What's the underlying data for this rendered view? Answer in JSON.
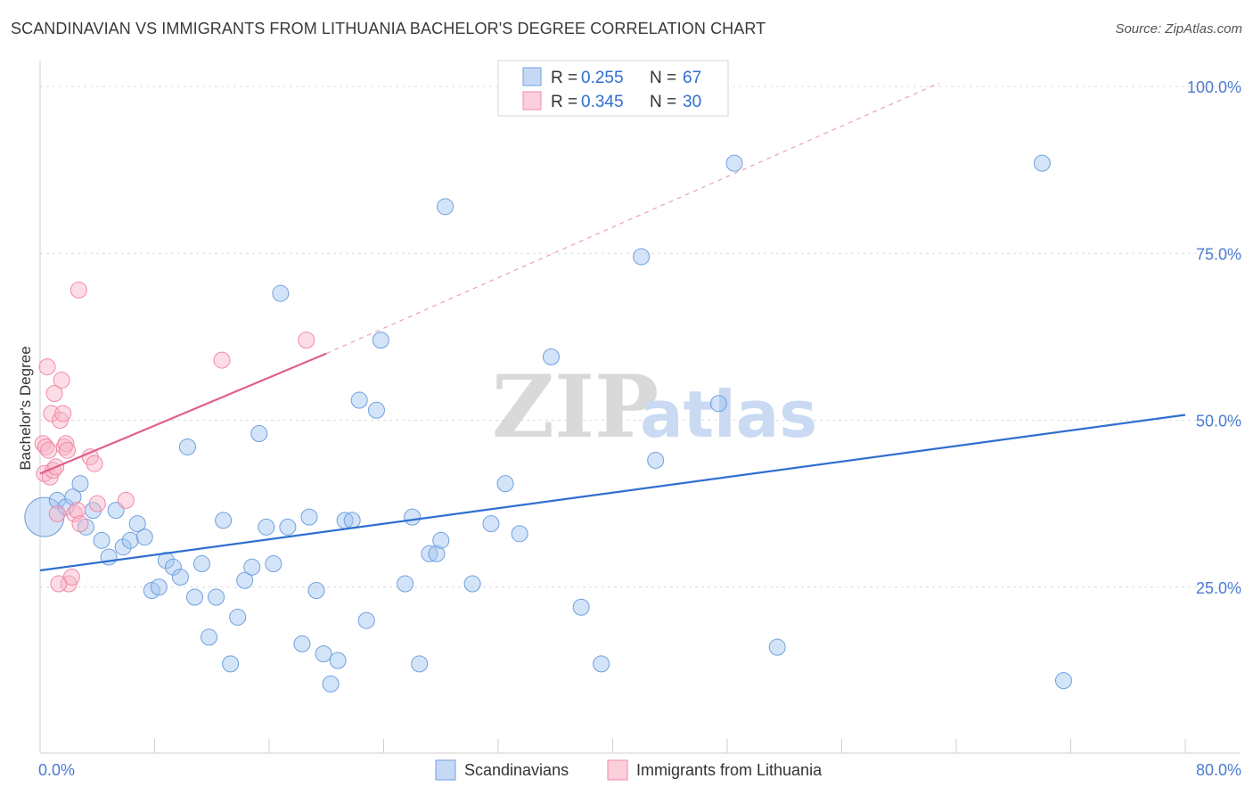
{
  "header": {
    "title": "SCANDINAVIAN VS IMMIGRANTS FROM LITHUANIA BACHELOR'S DEGREE CORRELATION CHART",
    "source": "Source: ZipAtlas.com"
  },
  "watermark": {
    "zip": "ZIP",
    "atlas": "atlas"
  },
  "legend": {
    "r_label": "R =",
    "n_label": "N =",
    "rows": [
      {
        "r": "0.255",
        "n": "67"
      },
      {
        "r": "0.345",
        "n": "30"
      }
    ]
  },
  "chart_data": {
    "type": "scatter",
    "title": "SCANDINAVIAN VS IMMIGRANTS FROM LITHUANIA BACHELOR'S DEGREE CORRELATION CHART",
    "xlabel": "",
    "ylabel": "Bachelor's Degree",
    "xlim": [
      0,
      80
    ],
    "ylim": [
      0,
      100
    ],
    "x_tick_labels": [
      "0.0%",
      "80.0%"
    ],
    "y_tick_labels": [
      "100.0%",
      "75.0%",
      "50.0%",
      "25.0%"
    ],
    "y_ticks": [
      100,
      75,
      50,
      25
    ],
    "grid": true,
    "legend_position": "top-center",
    "colors": {
      "scandinavians": "#6fa0e0",
      "lithuania": "#f08aa8",
      "blue_line": "#2f6fd0",
      "pink_line": "#e0608a"
    },
    "series": [
      {
        "name": "Scandinavians",
        "r": 0.255,
        "n": 67,
        "trend": {
          "x0": 0,
          "y0": 27.5,
          "x1": 80,
          "y1": 50.8
        },
        "points": [
          [
            0.3,
            35.5
          ],
          [
            1.2,
            38.0
          ],
          [
            1.8,
            37.0
          ],
          [
            2.3,
            38.5
          ],
          [
            2.8,
            40.5
          ],
          [
            3.2,
            34.0
          ],
          [
            3.7,
            36.5
          ],
          [
            4.3,
            32.0
          ],
          [
            4.8,
            29.5
          ],
          [
            5.3,
            36.5
          ],
          [
            5.8,
            31.0
          ],
          [
            6.3,
            32.0
          ],
          [
            6.8,
            34.5
          ],
          [
            7.3,
            32.5
          ],
          [
            7.8,
            24.5
          ],
          [
            8.3,
            25.0
          ],
          [
            8.8,
            29.0
          ],
          [
            9.3,
            28.0
          ],
          [
            9.8,
            26.5
          ],
          [
            10.3,
            46.0
          ],
          [
            10.8,
            23.5
          ],
          [
            11.3,
            28.5
          ],
          [
            11.8,
            17.5
          ],
          [
            12.3,
            23.5
          ],
          [
            12.8,
            35.0
          ],
          [
            13.3,
            13.5
          ],
          [
            13.8,
            20.5
          ],
          [
            14.3,
            26.0
          ],
          [
            14.8,
            28.0
          ],
          [
            15.3,
            48.0
          ],
          [
            15.8,
            34.0
          ],
          [
            16.3,
            28.5
          ],
          [
            16.8,
            69.0
          ],
          [
            17.3,
            34.0
          ],
          [
            18.3,
            16.5
          ],
          [
            18.8,
            35.5
          ],
          [
            19.3,
            24.5
          ],
          [
            19.8,
            15.0
          ],
          [
            20.3,
            10.5
          ],
          [
            20.8,
            14.0
          ],
          [
            21.3,
            35.0
          ],
          [
            21.8,
            35.0
          ],
          [
            22.3,
            53.0
          ],
          [
            22.8,
            20.0
          ],
          [
            23.5,
            51.5
          ],
          [
            23.8,
            62.0
          ],
          [
            25.5,
            25.5
          ],
          [
            26.0,
            35.5
          ],
          [
            26.5,
            13.5
          ],
          [
            27.2,
            30.0
          ],
          [
            27.7,
            30.0
          ],
          [
            28.0,
            32.0
          ],
          [
            28.3,
            82.0
          ],
          [
            30.2,
            25.5
          ],
          [
            31.5,
            34.5
          ],
          [
            32.5,
            40.5
          ],
          [
            33.5,
            33.0
          ],
          [
            35.7,
            59.5
          ],
          [
            37.8,
            22.0
          ],
          [
            39.2,
            13.5
          ],
          [
            42.0,
            74.5
          ],
          [
            47.4,
            52.5
          ],
          [
            48.5,
            88.5
          ],
          [
            51.5,
            16.0
          ],
          [
            70.0,
            88.5
          ],
          [
            71.5,
            11.0
          ],
          [
            43.0,
            44.0
          ]
        ]
      },
      {
        "name": "Immigrants from Lithuania",
        "r": 0.345,
        "n": 30,
        "trend": {
          "x0": 0,
          "y0": 42.0,
          "x1": 20.0,
          "y1": 60.0
        },
        "dashed_extension": {
          "x0": 20.0,
          "y0": 60.0,
          "x1": 62.8,
          "y1": 100.5
        },
        "points": [
          [
            0.2,
            46.5
          ],
          [
            0.3,
            42.0
          ],
          [
            0.4,
            46.0
          ],
          [
            0.5,
            58.0
          ],
          [
            0.7,
            41.5
          ],
          [
            0.8,
            51.0
          ],
          [
            0.9,
            42.5
          ],
          [
            1.0,
            54.0
          ],
          [
            1.1,
            43.0
          ],
          [
            1.2,
            36.0
          ],
          [
            1.4,
            50.0
          ],
          [
            1.5,
            56.0
          ],
          [
            1.6,
            51.0
          ],
          [
            1.7,
            46.0
          ],
          [
            1.8,
            46.5
          ],
          [
            1.9,
            45.5
          ],
          [
            2.0,
            25.5
          ],
          [
            2.2,
            26.5
          ],
          [
            2.4,
            36.0
          ],
          [
            2.6,
            36.5
          ],
          [
            2.8,
            34.5
          ],
          [
            2.7,
            69.5
          ],
          [
            3.5,
            44.5
          ],
          [
            3.8,
            43.5
          ],
          [
            4.0,
            37.5
          ],
          [
            6.0,
            38.0
          ],
          [
            12.7,
            59.0
          ],
          [
            18.6,
            62.0
          ],
          [
            1.3,
            25.5
          ],
          [
            0.6,
            45.5
          ]
        ]
      }
    ]
  },
  "bottom_legend": {
    "items": [
      {
        "label": "Scandinavians"
      },
      {
        "label": "Immigrants from Lithuania"
      }
    ]
  }
}
